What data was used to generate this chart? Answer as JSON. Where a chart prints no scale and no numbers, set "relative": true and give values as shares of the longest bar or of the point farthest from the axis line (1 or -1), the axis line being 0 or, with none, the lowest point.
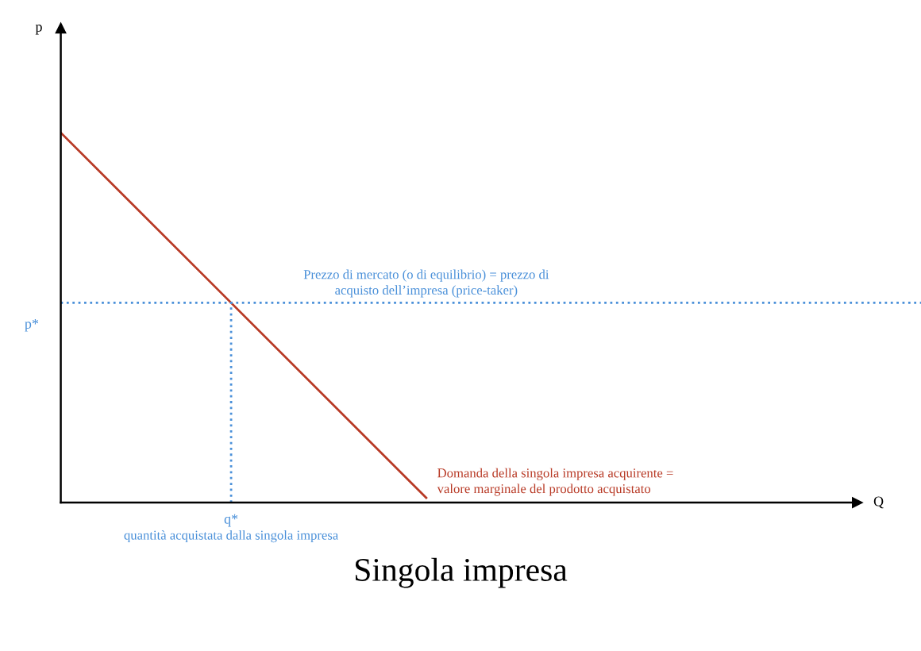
{
  "chart_data": {
    "type": "line",
    "relative": true,
    "title": "Singola impresa",
    "xlabel": "Q",
    "categories": [
      null,
      null
    ],
    "series": [
      {
        "color": "#b83a26",
        "values": [
          1,
          0.013
        ]
      }
    ],
    "ref_lines": [
      {
        "axis": "y",
        "value": 0.54,
        "label": "p*",
        "color": "#4a90d9",
        "line_style": "dotted"
      }
    ],
    "annotations": [
      "p",
      "Prezzo di mercato (o di equilibrio) = prezzo di\nacquisto dell’impresa (price-taker)",
      "q*",
      "quantità acquistata dalla singola impresa",
      "Domanda della singola impresa acquirente =\nvalore marginale del prodotto acquistato"
    ],
    "line_style": "solid"
  }
}
